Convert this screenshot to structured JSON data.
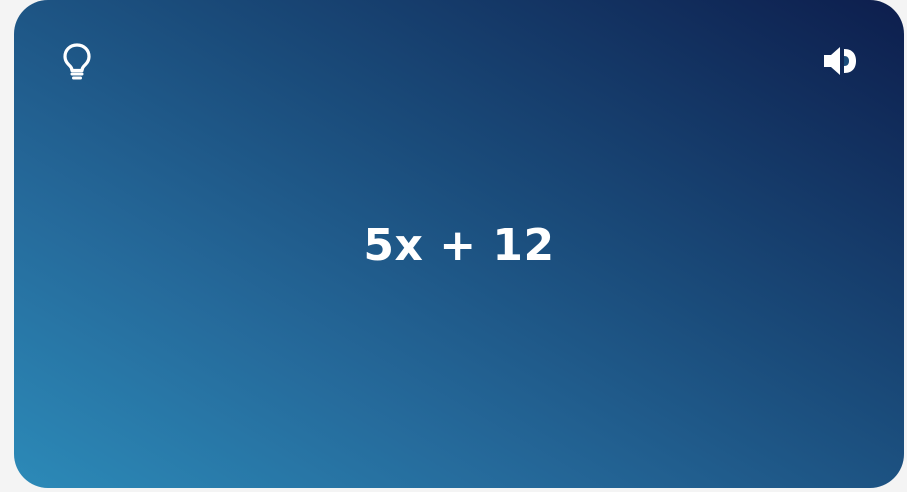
{
  "card": {
    "term": "5x + 12",
    "icons": {
      "hint": "lightbulb-icon",
      "audio": "speaker-icon"
    },
    "colors": {
      "gradient_light": "#2c8ab8",
      "gradient_dark": "#0d1e4d",
      "text": "#ffffff"
    }
  }
}
